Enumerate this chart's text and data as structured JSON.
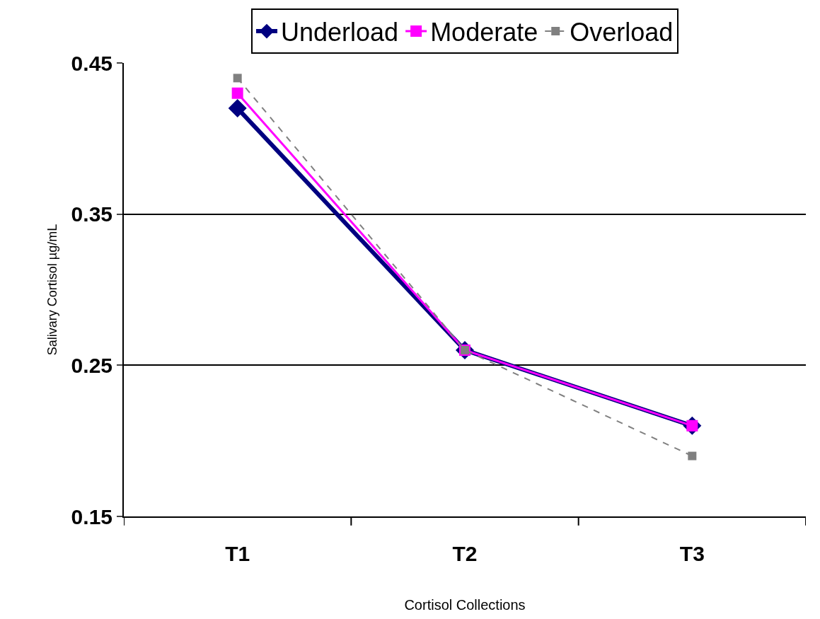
{
  "chart_data": {
    "type": "line",
    "xlabel": "Cortisol Collections",
    "ylabel": "Salivary Cortisol µg/mL",
    "categories": [
      "T1",
      "T2",
      "T3"
    ],
    "series": [
      {
        "name": "Underload",
        "color": "#000080",
        "values": [
          0.42,
          0.26,
          0.21
        ],
        "marker": "diamond",
        "line_style": "solid"
      },
      {
        "name": "Moderate",
        "color": "#ff00ff",
        "values": [
          0.43,
          0.26,
          0.21
        ],
        "marker": "square",
        "line_style": "solid"
      },
      {
        "name": "Overload",
        "color": "#808080",
        "values": [
          0.44,
          0.26,
          0.19
        ],
        "marker": "square",
        "line_style": "dashed"
      }
    ],
    "ylim": [
      0.15,
      0.45
    ],
    "yticks": [
      0.15,
      0.25,
      0.35,
      0.45
    ],
    "grid": "y",
    "legend": "top"
  }
}
